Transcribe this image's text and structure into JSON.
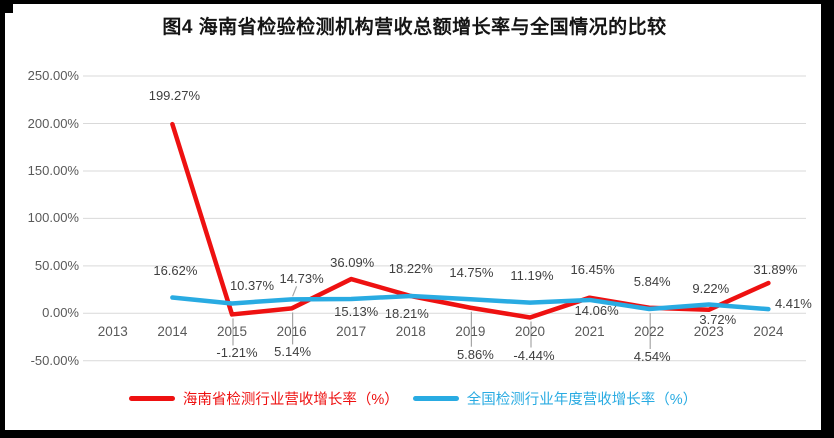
{
  "title": "图4 海南省检验检测机构营收总额增长率与全国情况的比较",
  "colors": {
    "hainan_red": "#ee1111",
    "national_blue": "#29abe2",
    "grid": "#d9d9d9",
    "axis_text": "#595959",
    "label_text": "#3f3f3f",
    "leader": "#a6a6a6",
    "frame_black": "#000000",
    "background": "#ffffff"
  },
  "chart_data": {
    "type": "line",
    "title": "图4 海南省检验检测机构营收总额增长率与全国情况的比较",
    "categories": [
      "2013",
      "2014",
      "2015",
      "2016",
      "2017",
      "2018",
      "2019",
      "2020",
      "2021",
      "2022",
      "2023",
      "2024"
    ],
    "ylim": [
      -50,
      250
    ],
    "ytick_step": 50,
    "yticks": [
      "250.00%",
      "200.00%",
      "150.00%",
      "100.00%",
      "50.00%",
      "0.00%",
      "-50.00%"
    ],
    "grid": "horizontal",
    "legend_position": "bottom",
    "series": [
      {
        "name": "海南省检测行业营收增长率（%）",
        "color_key": "hainan_red",
        "values": [
          null,
          199.27,
          -1.21,
          5.14,
          36.09,
          18.22,
          5.86,
          -4.44,
          16.45,
          5.84,
          3.72,
          31.89
        ],
        "labels": [
          null,
          "199.27%",
          "-1.21%",
          "5.14%",
          "36.09%",
          "18.22%",
          "5.86%",
          "-4.44%",
          "16.45%",
          "5.84%",
          "3.72%",
          "31.89%"
        ],
        "label_offsets": [
          null,
          [
            2,
            -28
          ],
          [
            5,
            39
          ],
          [
            1,
            44
          ],
          [
            1,
            -16
          ],
          [
            0,
            -27
          ],
          [
            5,
            47
          ],
          [
            4,
            38
          ],
          [
            3,
            -28
          ],
          [
            3,
            -26
          ],
          [
            9,
            10
          ],
          [
            7,
            -13
          ]
        ],
        "leaders": [
          null,
          null,
          "v",
          "v",
          null,
          null,
          "v",
          "v",
          null,
          null,
          null,
          null
        ]
      },
      {
        "name": "全国检测行业年度营收增长率（%）",
        "color_key": "national_blue",
        "values": [
          null,
          16.62,
          10.37,
          14.73,
          15.13,
          18.21,
          14.75,
          11.19,
          14.06,
          4.54,
          9.22,
          4.41
        ],
        "labels": [
          null,
          "16.62%",
          "10.37%",
          "14.73%",
          "15.13%",
          "18.21%",
          "14.75%",
          "11.19%",
          "14.06%",
          "4.54%",
          "9.22%",
          "4.41%"
        ],
        "label_offsets": [
          null,
          [
            3,
            -27
          ],
          [
            20,
            -17
          ],
          [
            10,
            -20
          ],
          [
            5,
            13
          ],
          [
            -4,
            18
          ],
          [
            1,
            -26
          ],
          [
            2,
            -27
          ],
          [
            7,
            11
          ],
          [
            3,
            48
          ],
          [
            2,
            -16
          ],
          [
            25,
            -5
          ]
        ],
        "leaders": [
          null,
          null,
          null,
          "d",
          null,
          null,
          null,
          null,
          null,
          "v",
          null,
          null
        ]
      }
    ]
  }
}
